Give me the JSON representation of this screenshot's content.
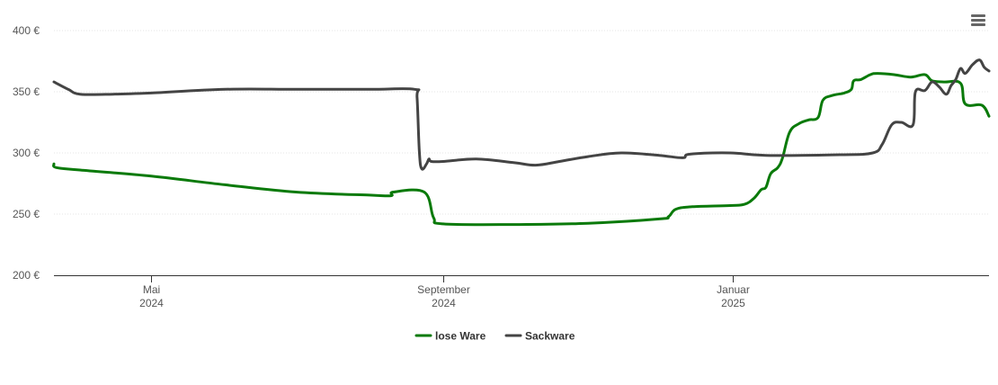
{
  "chart_data": {
    "type": "line",
    "title": "",
    "xlabel": "",
    "ylabel": "",
    "ylim": [
      200,
      400
    ],
    "y_ticks": [
      200,
      250,
      300,
      350,
      400
    ],
    "y_tick_labels": [
      "200 €",
      "250 €",
      "300 €",
      "350 €",
      "400 €"
    ],
    "y_unit": "€",
    "x_range": [
      "2024-03-21",
      "2025-04-19"
    ],
    "x_ticks": [
      {
        "date": "2024-05-01",
        "label_top": "Mai",
        "label_bottom": "2024"
      },
      {
        "date": "2024-09-01",
        "label_top": "September",
        "label_bottom": "2024"
      },
      {
        "date": "2025-01-01",
        "label_top": "Januar",
        "label_bottom": "2025"
      }
    ],
    "grid": true,
    "legend_position": "bottom-center",
    "series": [
      {
        "name": "lose Ware",
        "color": "#0a7a0a",
        "points": [
          [
            "2024-03-21",
            291
          ],
          [
            "2024-03-22",
            288
          ],
          [
            "2024-04-01",
            286
          ],
          [
            "2024-05-01",
            281
          ],
          [
            "2024-06-01",
            274
          ],
          [
            "2024-07-01",
            268
          ],
          [
            "2024-08-01",
            265.5
          ],
          [
            "2024-08-10",
            265
          ],
          [
            "2024-08-11",
            268
          ],
          [
            "2024-08-24",
            268
          ],
          [
            "2024-08-28",
            247
          ],
          [
            "2024-09-01",
            242
          ],
          [
            "2024-10-01",
            241.5
          ],
          [
            "2024-11-01",
            242.5
          ],
          [
            "2024-12-01",
            246
          ],
          [
            "2024-12-05",
            248
          ],
          [
            "2024-12-08",
            254
          ],
          [
            "2024-12-15",
            256
          ],
          [
            "2024-12-31",
            257
          ],
          [
            "2025-01-06",
            258
          ],
          [
            "2025-01-10",
            263
          ],
          [
            "2025-01-13",
            270
          ],
          [
            "2025-01-15",
            272
          ],
          [
            "2025-01-17",
            283
          ],
          [
            "2025-01-20",
            288
          ],
          [
            "2025-01-22",
            296
          ],
          [
            "2025-01-25",
            317
          ],
          [
            "2025-01-29",
            324
          ],
          [
            "2025-02-02",
            327
          ],
          [
            "2025-02-06",
            329
          ],
          [
            "2025-02-08",
            343
          ],
          [
            "2025-02-12",
            347
          ],
          [
            "2025-02-17",
            349
          ],
          [
            "2025-02-20",
            352
          ],
          [
            "2025-02-21",
            359
          ],
          [
            "2025-02-24",
            360
          ],
          [
            "2025-02-28",
            364
          ],
          [
            "2025-03-03",
            365
          ],
          [
            "2025-03-10",
            364
          ],
          [
            "2025-03-17",
            362
          ],
          [
            "2025-03-23",
            364
          ],
          [
            "2025-03-26",
            359
          ],
          [
            "2025-03-31",
            358
          ],
          [
            "2025-04-07",
            357
          ],
          [
            "2025-04-09",
            340
          ],
          [
            "2025-04-16",
            339
          ],
          [
            "2025-04-19",
            330
          ]
        ]
      },
      {
        "name": "Sackware",
        "color": "#444444",
        "points": [
          [
            "2024-03-21",
            358
          ],
          [
            "2024-03-27",
            352
          ],
          [
            "2024-04-01",
            348
          ],
          [
            "2024-04-15",
            348
          ],
          [
            "2024-05-01",
            349
          ],
          [
            "2024-06-01",
            352
          ],
          [
            "2024-07-01",
            352
          ],
          [
            "2024-08-01",
            352
          ],
          [
            "2024-08-20",
            352
          ],
          [
            "2024-08-21",
            345
          ],
          [
            "2024-08-22",
            300
          ],
          [
            "2024-08-23",
            287
          ],
          [
            "2024-08-25",
            291
          ],
          [
            "2024-08-26",
            295
          ],
          [
            "2024-08-27",
            293
          ],
          [
            "2024-09-01",
            293
          ],
          [
            "2024-09-15",
            295
          ],
          [
            "2024-10-01",
            292
          ],
          [
            "2024-10-10",
            290
          ],
          [
            "2024-10-20",
            293
          ],
          [
            "2024-11-01",
            297
          ],
          [
            "2024-11-15",
            300
          ],
          [
            "2024-12-01",
            298
          ],
          [
            "2024-12-11",
            296
          ],
          [
            "2024-12-14",
            299
          ],
          [
            "2024-12-31",
            300
          ],
          [
            "2025-01-15",
            298
          ],
          [
            "2025-02-15",
            298.5
          ],
          [
            "2025-03-01",
            300
          ],
          [
            "2025-03-05",
            307
          ],
          [
            "2025-03-09",
            323
          ],
          [
            "2025-03-13",
            325
          ],
          [
            "2025-03-18",
            323
          ],
          [
            "2025-03-19",
            350
          ],
          [
            "2025-03-23",
            351
          ],
          [
            "2025-03-26",
            358
          ],
          [
            "2025-03-29",
            354
          ],
          [
            "2025-04-01",
            348
          ],
          [
            "2025-04-03",
            355
          ],
          [
            "2025-04-05",
            360
          ],
          [
            "2025-04-07",
            369
          ],
          [
            "2025-04-09",
            365
          ],
          [
            "2025-04-12",
            372
          ],
          [
            "2025-04-15",
            376
          ],
          [
            "2025-04-17",
            370
          ],
          [
            "2025-04-19",
            367
          ]
        ]
      }
    ],
    "legend": [
      {
        "name": "lose Ware",
        "color": "#0a7a0a"
      },
      {
        "name": "Sackware",
        "color": "#444444"
      }
    ]
  },
  "toolbar": {
    "menu_icon": "hamburger-menu-icon"
  }
}
